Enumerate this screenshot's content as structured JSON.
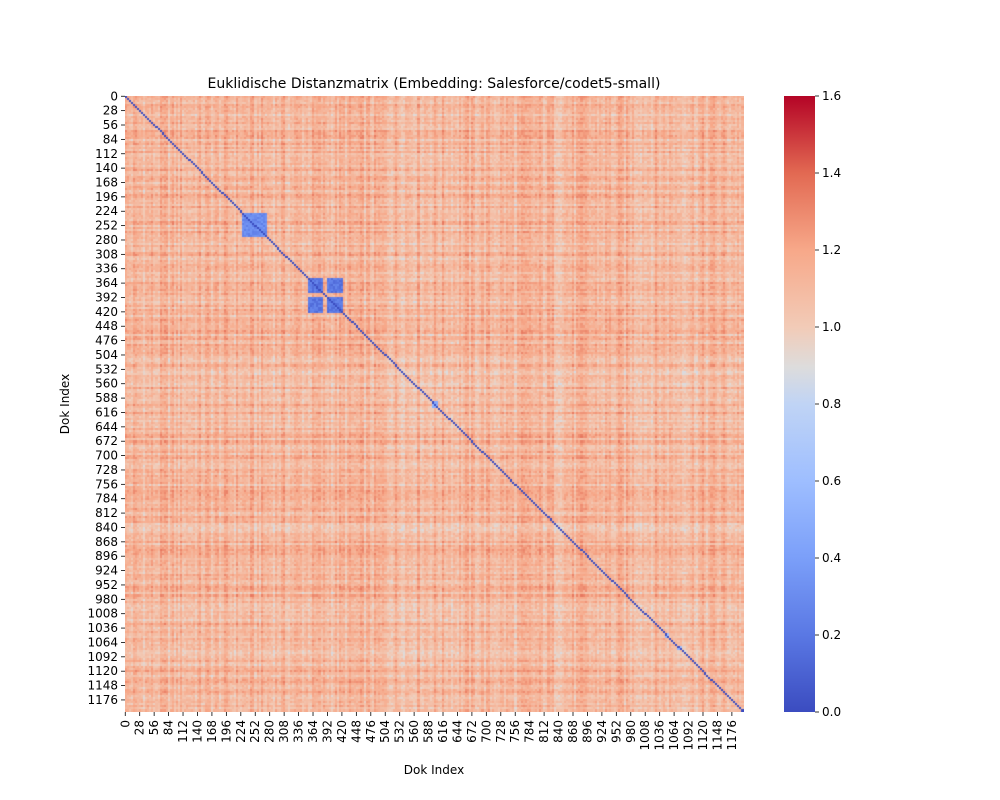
{
  "chart_data": {
    "type": "heatmap",
    "title": "Euklidische Distanzmatrix (Embedding: Salesforce/codet5-small)",
    "xlabel": "Dok Index",
    "ylabel": "Dok Index",
    "matrix_size": 1200,
    "x_tick_labels": [
      "0",
      "28",
      "56",
      "84",
      "112",
      "140",
      "168",
      "196",
      "224",
      "252",
      "280",
      "308",
      "336",
      "364",
      "392",
      "420",
      "448",
      "476",
      "504",
      "532",
      "560",
      "588",
      "616",
      "644",
      "672",
      "700",
      "728",
      "756",
      "784",
      "812",
      "840",
      "868",
      "896",
      "924",
      "952",
      "980",
      "1008",
      "1036",
      "1064",
      "1092",
      "1120",
      "1148",
      "1176"
    ],
    "y_tick_labels": [
      "0",
      "28",
      "56",
      "84",
      "112",
      "140",
      "168",
      "196",
      "224",
      "252",
      "280",
      "308",
      "336",
      "364",
      "392",
      "420",
      "448",
      "476",
      "504",
      "532",
      "560",
      "588",
      "616",
      "644",
      "672",
      "700",
      "728",
      "756",
      "784",
      "812",
      "840",
      "868",
      "896",
      "924",
      "952",
      "980",
      "1008",
      "1036",
      "1064",
      "1092",
      "1120",
      "1148",
      "1176"
    ],
    "colorbar": {
      "colormap": "coolwarm",
      "vmin": 0.0,
      "vmax": 1.6,
      "tick_labels": [
        "0.0",
        "0.2",
        "0.4",
        "0.6",
        "0.8",
        "1.0",
        "1.2",
        "1.4",
        "1.6"
      ],
      "ticks": [
        0.0,
        0.2,
        0.4,
        0.6,
        0.8,
        1.0,
        1.2,
        1.4,
        1.6
      ]
    },
    "typical_value_range": [
      0.8,
      1.35
    ],
    "diagonal_value": 0.0,
    "low_distance_blocks": [
      {
        "rows": [
          225,
          275
        ],
        "cols": [
          225,
          275
        ],
        "value": 0.3
      },
      {
        "rows": [
          355,
          380
        ],
        "cols": [
          355,
          380
        ],
        "value": 0.2
      },
      {
        "rows": [
          355,
          380
        ],
        "cols": [
          390,
          420
        ],
        "value": 0.2
      },
      {
        "rows": [
          390,
          420
        ],
        "cols": [
          355,
          380
        ],
        "value": 0.2
      },
      {
        "rows": [
          390,
          420
        ],
        "cols": [
          390,
          420
        ],
        "value": 0.2
      },
      {
        "rows": [
          595,
          605
        ],
        "cols": [
          595,
          605
        ],
        "value": 0.5
      },
      {
        "rows": [
          1045,
          1052
        ],
        "cols": [
          1045,
          1052
        ],
        "value": 0.6
      },
      {
        "rows": [
          1070,
          1076
        ],
        "cols": [
          1070,
          1076
        ],
        "value": 0.6
      }
    ],
    "grid": false
  }
}
